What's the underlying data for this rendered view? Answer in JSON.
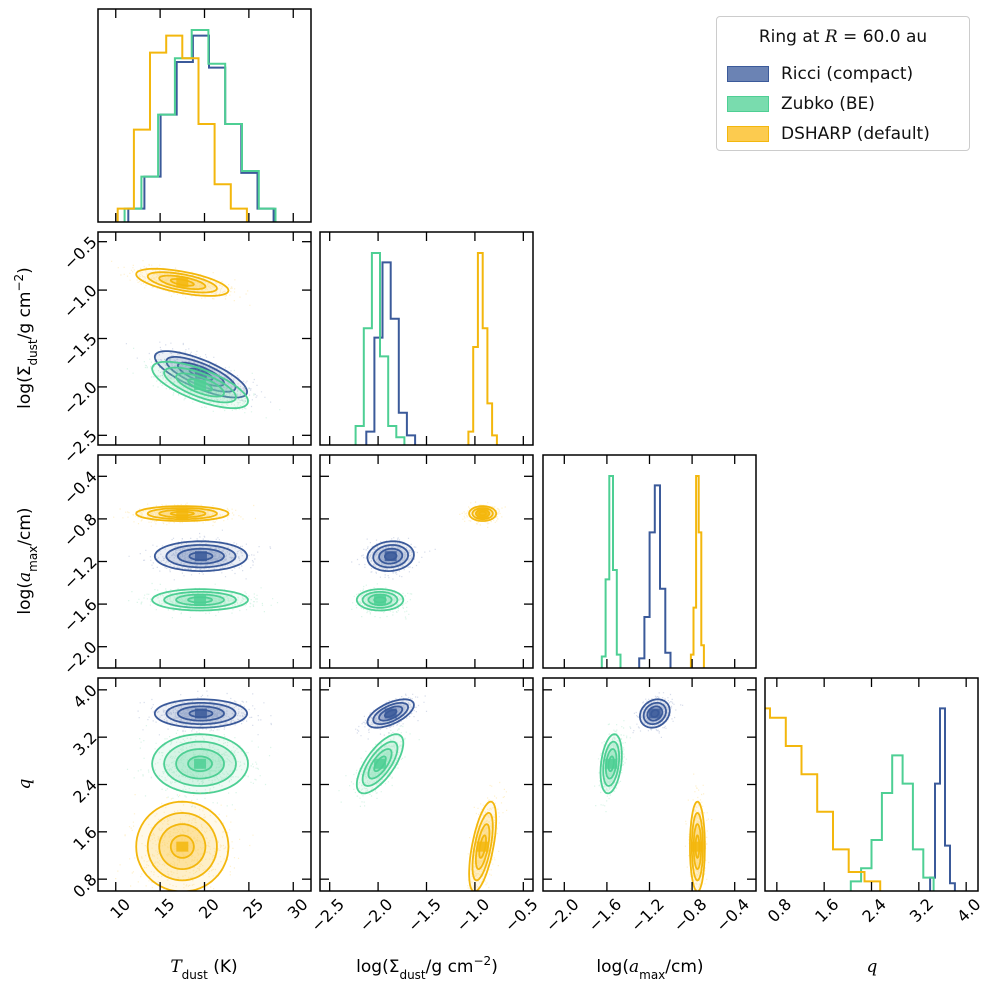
{
  "chart_data": {
    "type": "corner",
    "title": "Ring at R = 60.0 au",
    "parameters": [
      {
        "key": "T",
        "label": "T_dust (K)",
        "range": [
          8,
          32
        ],
        "ticks": [
          10,
          15,
          20,
          25,
          30
        ],
        "tick_labels": [
          "10",
          "15",
          "20",
          "25",
          "30"
        ]
      },
      {
        "key": "S",
        "label": "log(Σ_dust/g cm^-2)",
        "range": [
          -2.6,
          -0.4
        ],
        "ticks": [
          -2.5,
          -2.0,
          -1.5,
          -1.0,
          -0.5
        ],
        "tick_labels": [
          "−2.5",
          "−2.0",
          "−1.5",
          "−1.0",
          "−0.5"
        ]
      },
      {
        "key": "A",
        "label": "log(a_max/cm)",
        "range": [
          -2.2,
          -0.2
        ],
        "ticks": [
          -2.0,
          -1.6,
          -1.2,
          -0.8,
          -0.4
        ],
        "tick_labels": [
          "−2.0",
          "−1.6",
          "−1.2",
          "−0.8",
          "−0.4"
        ]
      },
      {
        "key": "Q",
        "label": "q",
        "range": [
          0.6,
          4.2
        ],
        "ticks": [
          0.8,
          1.6,
          2.4,
          3.2,
          4.0
        ],
        "tick_labels": [
          "0.8",
          "1.6",
          "2.4",
          "3.2",
          "4.0"
        ]
      }
    ],
    "axis_labels": {
      "T": {
        "pre": "",
        "sym": "T",
        "sub": "dust",
        "post": " (K)"
      },
      "S": {
        "pre": "log(Σ",
        "sym": "",
        "sub": "dust",
        "post": "/g cm",
        "sup": "−2",
        "tail": ")"
      },
      "A": {
        "pre": "log(",
        "sym": "a",
        "sub": "max",
        "post": "/cm)"
      },
      "Q": {
        "pre": "",
        "sym": "q",
        "sub": "",
        "post": ""
      }
    },
    "series": [
      {
        "name": "Ricci (compact)",
        "color": "#3b5a9a",
        "fill": "#6b83b4",
        "T": {
          "mean": 19.6,
          "sd": 2.6
        },
        "S": {
          "mean": -1.87,
          "sd": 0.12
        },
        "A": {
          "mean": -1.15,
          "sd": 0.07
        },
        "Q": {
          "mean": 3.6,
          "sd": 0.12
        },
        "rho": {
          "TS": -0.75,
          "TA": 0.0,
          "TQ": 0.0,
          "SA": 0.1,
          "SQ": 0.6,
          "AQ": 0.2
        },
        "hist": {
          "T": [
            0.05,
            0.22,
            0.55,
            0.83,
            0.97,
            0.8,
            0.5,
            0.24,
            0.05
          ],
          "S": [
            0.05,
            0.55,
            0.95,
            0.65,
            0.15,
            0.03
          ],
          "A": [
            0.03,
            0.25,
            0.7,
            0.95,
            0.4,
            0.06
          ],
          "Q": [
            0.05,
            0.55,
            0.95,
            0.22,
            0.02
          ]
        }
      },
      {
        "name": "Zubko (BE)",
        "color": "#4ecf94",
        "fill": "#79dcae",
        "T": {
          "mean": 19.5,
          "sd": 2.7
        },
        "S": {
          "mean": -1.98,
          "sd": 0.12
        },
        "A": {
          "mean": -1.56,
          "sd": 0.05
        },
        "Q": {
          "mean": 2.75,
          "sd": 0.25
        },
        "rho": {
          "TS": -0.7,
          "TA": 0.0,
          "TQ": 0.0,
          "SA": 0.0,
          "SQ": 0.7,
          "AQ": 0.3
        },
        "hist": {
          "T": [
            0.05,
            0.22,
            0.55,
            0.85,
            1.0,
            0.82,
            0.5,
            0.25,
            0.05
          ],
          "S": [
            0.08,
            0.6,
            1.0,
            0.45,
            0.08,
            0.02
          ],
          "A": [
            0.04,
            0.45,
            1.0,
            0.5,
            0.05
          ],
          "Q": [
            0.03,
            0.1,
            0.25,
            0.5,
            0.7,
            0.55,
            0.2,
            0.05
          ]
        }
      },
      {
        "name": "DSHARP (default)",
        "color": "#f3b70d",
        "fill": "#fccb4f",
        "T": {
          "mean": 17.5,
          "sd": 2.6
        },
        "S": {
          "mean": -0.92,
          "sd": 0.07
        },
        "A": {
          "mean": -0.75,
          "sd": 0.035
        },
        "Q": {
          "mean": 1.35,
          "sd": 0.38
        },
        "rho": {
          "TS": -0.6,
          "TA": 0.0,
          "TQ": 0.0,
          "SA": 0.0,
          "SQ": 0.6,
          "AQ": 0.0
        },
        "hist": {
          "T": [
            0.05,
            0.47,
            0.88,
            0.97,
            0.85,
            0.5,
            0.18,
            0.05
          ],
          "S": [
            0.05,
            0.5,
            1.0,
            0.6,
            0.2,
            0.03
          ],
          "A": [
            0.05,
            0.3,
            1.0,
            0.7,
            0.1
          ],
          "Q": [
            0.25,
            0.95,
            0.9,
            0.75,
            0.6,
            0.4,
            0.2,
            0.08,
            0.03
          ]
        }
      }
    ],
    "legend_position": "top-right",
    "grid": false
  },
  "legend": {
    "title_prefix": "Ring at ",
    "title_var": "R",
    "title_suffix": " = 60.0 au",
    "entries": [
      "Ricci (compact)",
      "Zubko (BE)",
      "DSHARP (default)"
    ]
  }
}
